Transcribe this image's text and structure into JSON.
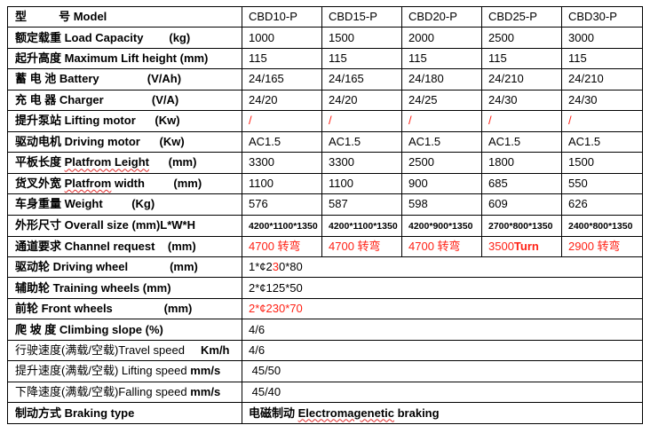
{
  "colors": {
    "accent_red": "#ff2115",
    "squiggle": "#e02b2b",
    "border": "#000000",
    "text": "#000000"
  },
  "table": {
    "models": [
      "CBD10-P",
      "CBD15-P",
      "CBD20-P",
      "CBD25-P",
      "CBD30-P"
    ],
    "rows": [
      {
        "name": "model",
        "label": [
          {
            "t": "型          号 Model",
            "b": 1
          }
        ],
        "cells": [
          [
            {
              "t": "CBD10-P"
            }
          ],
          [
            {
              "t": "CBD15-P"
            }
          ],
          [
            {
              "t": "CBD20-P"
            }
          ],
          [
            {
              "t": "CBD25-P"
            }
          ],
          [
            {
              "t": "CBD30-P"
            }
          ]
        ]
      },
      {
        "name": "load-capacity",
        "label": [
          {
            "t": "额定载重 Load Capacity        (kg)",
            "b": 1
          }
        ],
        "cells": [
          [
            {
              "t": "1000"
            }
          ],
          [
            {
              "t": "1500"
            }
          ],
          [
            {
              "t": "2000"
            }
          ],
          [
            {
              "t": "2500"
            }
          ],
          [
            {
              "t": "3000"
            }
          ]
        ]
      },
      {
        "name": "max-lift-height",
        "label": [
          {
            "t": "起升高度 Maximum Lift height (mm)",
            "b": 1
          }
        ],
        "cells": [
          [
            {
              "t": "115"
            }
          ],
          [
            {
              "t": "115"
            }
          ],
          [
            {
              "t": "115"
            }
          ],
          [
            {
              "t": "115"
            }
          ],
          [
            {
              "t": "115"
            }
          ]
        ]
      },
      {
        "name": "battery",
        "label": [
          {
            "t": "蓄 电 池 Battery               (V/Ah)",
            "b": 1
          }
        ],
        "cells": [
          [
            {
              "t": "24/165"
            }
          ],
          [
            {
              "t": "24/165"
            }
          ],
          [
            {
              "t": "24/180"
            }
          ],
          [
            {
              "t": "24/210"
            }
          ],
          [
            {
              "t": "24/210"
            }
          ]
        ]
      },
      {
        "name": "charger",
        "label": [
          {
            "t": "充 电 器 Charger               (V/A)",
            "b": 1
          }
        ],
        "cells": [
          [
            {
              "t": "24/20"
            }
          ],
          [
            {
              "t": "24/20"
            }
          ],
          [
            {
              "t": "24/25"
            }
          ],
          [
            {
              "t": "24/30"
            }
          ],
          [
            {
              "t": "24/30"
            }
          ]
        ]
      },
      {
        "name": "lifting-motor",
        "label": [
          {
            "t": "提升泵站 Lifting motor      (Kw)",
            "b": 1
          }
        ],
        "cells": [
          [
            {
              "t": "/",
              "r": 1
            }
          ],
          [
            {
              "t": "/",
              "r": 1
            }
          ],
          [
            {
              "t": "/",
              "r": 1
            }
          ],
          [
            {
              "t": "/",
              "r": 1
            }
          ],
          [
            {
              "t": "/",
              "r": 1
            }
          ]
        ]
      },
      {
        "name": "driving-motor",
        "label": [
          {
            "t": "驱动电机 Driving motor      (Kw)",
            "b": 1
          }
        ],
        "cells": [
          [
            {
              "t": "AC1.5"
            }
          ],
          [
            {
              "t": "AC1.5"
            }
          ],
          [
            {
              "t": "AC1.5"
            }
          ],
          [
            {
              "t": "AC1.5"
            }
          ],
          [
            {
              "t": "AC1.5"
            }
          ]
        ]
      },
      {
        "name": "platform-length",
        "label": [
          {
            "t": "平板长度 ",
            "b": 1
          },
          {
            "t": "Platfrom Leight",
            "b": 1,
            "sq": 1
          },
          {
            "t": "      (mm)",
            "b": 1
          }
        ],
        "cells": [
          [
            {
              "t": "3300"
            }
          ],
          [
            {
              "t": "3300"
            }
          ],
          [
            {
              "t": "2500"
            }
          ],
          [
            {
              "t": "1800"
            }
          ],
          [
            {
              "t": "1500"
            }
          ]
        ]
      },
      {
        "name": "platform-width",
        "label": [
          {
            "t": "货叉外宽 ",
            "b": 1
          },
          {
            "t": "Platfrom",
            "b": 1,
            "sq": 1
          },
          {
            "t": " width         (mm)",
            "b": 1
          }
        ],
        "cells": [
          [
            {
              "t": "1100"
            }
          ],
          [
            {
              "t": "1100"
            }
          ],
          [
            {
              "t": "900"
            }
          ],
          [
            {
              "t": "685"
            }
          ],
          [
            {
              "t": "550"
            }
          ]
        ]
      },
      {
        "name": "weight",
        "label": [
          {
            "t": "车身重量 Weight         (Kg)",
            "b": 1
          }
        ],
        "cells": [
          [
            {
              "t": "576"
            }
          ],
          [
            {
              "t": "587"
            }
          ],
          [
            {
              "t": "598"
            }
          ],
          [
            {
              "t": "609"
            }
          ],
          [
            {
              "t": "626"
            }
          ]
        ]
      },
      {
        "name": "overall-size",
        "label": [
          {
            "t": "外形尺寸 Overall size (mm)L*W*H",
            "b": 1
          }
        ],
        "cells": [
          [
            {
              "t": "4200*1100*1350",
              "sm": 1
            }
          ],
          [
            {
              "t": "4200*1100*1350",
              "sm": 1
            }
          ],
          [
            {
              "t": "4200*900*1350",
              "sm": 1
            }
          ],
          [
            {
              "t": "2700*800*1350",
              "sm": 1
            }
          ],
          [
            {
              "t": "2400*800*1350",
              "sm": 1
            }
          ]
        ]
      },
      {
        "name": "channel-request",
        "label": [
          {
            "t": "通道要求 Channel request    (mm)",
            "b": 1
          }
        ],
        "cells": [
          [
            {
              "t": "4700 转弯",
              "r": 1
            }
          ],
          [
            {
              "t": "4700 转弯",
              "r": 1
            }
          ],
          [
            {
              "t": "4700 转弯",
              "r": 1
            }
          ],
          [
            {
              "t": "3500",
              "r": 1
            },
            {
              "t": "Turn",
              "r": 1,
              "b": 1
            }
          ],
          [
            {
              "t": "2900 转弯",
              "r": 1
            }
          ]
        ]
      },
      {
        "name": "driving-wheel",
        "label": [
          {
            "t": "驱动轮 Driving wheel             (mm)",
            "b": 1
          }
        ],
        "span": [
          {
            "t": "1*¢2"
          },
          {
            "t": "3",
            "r": 1
          },
          {
            "t": "0*80"
          }
        ]
      },
      {
        "name": "training-wheels",
        "label": [
          {
            "t": "辅助轮 Training wheels (mm)",
            "b": 1
          }
        ],
        "span": [
          {
            "t": "2*¢125*50"
          }
        ]
      },
      {
        "name": "front-wheels",
        "label": [
          {
            "t": "前轮 Front wheels                (mm)",
            "b": 1
          }
        ],
        "span": [
          {
            "t": "2*¢230*70",
            "r": 1
          }
        ]
      },
      {
        "name": "climbing-slope",
        "label": [
          {
            "t": "爬 坡 度 Climbing slope (%)",
            "b": 1
          }
        ],
        "span": [
          {
            "t": "4/6"
          }
        ]
      },
      {
        "name": "travel-speed",
        "label": [
          {
            "t": "行驶速度(满载/空载)Travel speed     "
          },
          {
            "t": "Km/h",
            "b": 1
          }
        ],
        "span": [
          {
            "t": "4/6"
          }
        ]
      },
      {
        "name": "lifting-speed",
        "label": [
          {
            "t": "提升速度(满载/空载) Lifting speed "
          },
          {
            "t": "mm/s",
            "b": 1
          }
        ],
        "span": [
          {
            "t": " 45/50"
          }
        ]
      },
      {
        "name": "falling-speed",
        "label": [
          {
            "t": "下降速度(满载/空载)Falling speed "
          },
          {
            "t": "mm/s",
            "b": 1
          }
        ],
        "span": [
          {
            "t": " 45/40"
          }
        ]
      },
      {
        "name": "braking-type",
        "label": [
          {
            "t": "制动方式 Braking type",
            "b": 1
          }
        ],
        "span": [
          {
            "t": "电磁制动 ",
            "b": 1
          },
          {
            "t": "Electromagenetic",
            "b": 1,
            "sq": 1
          },
          {
            "t": " braking",
            "b": 1
          }
        ]
      }
    ]
  }
}
